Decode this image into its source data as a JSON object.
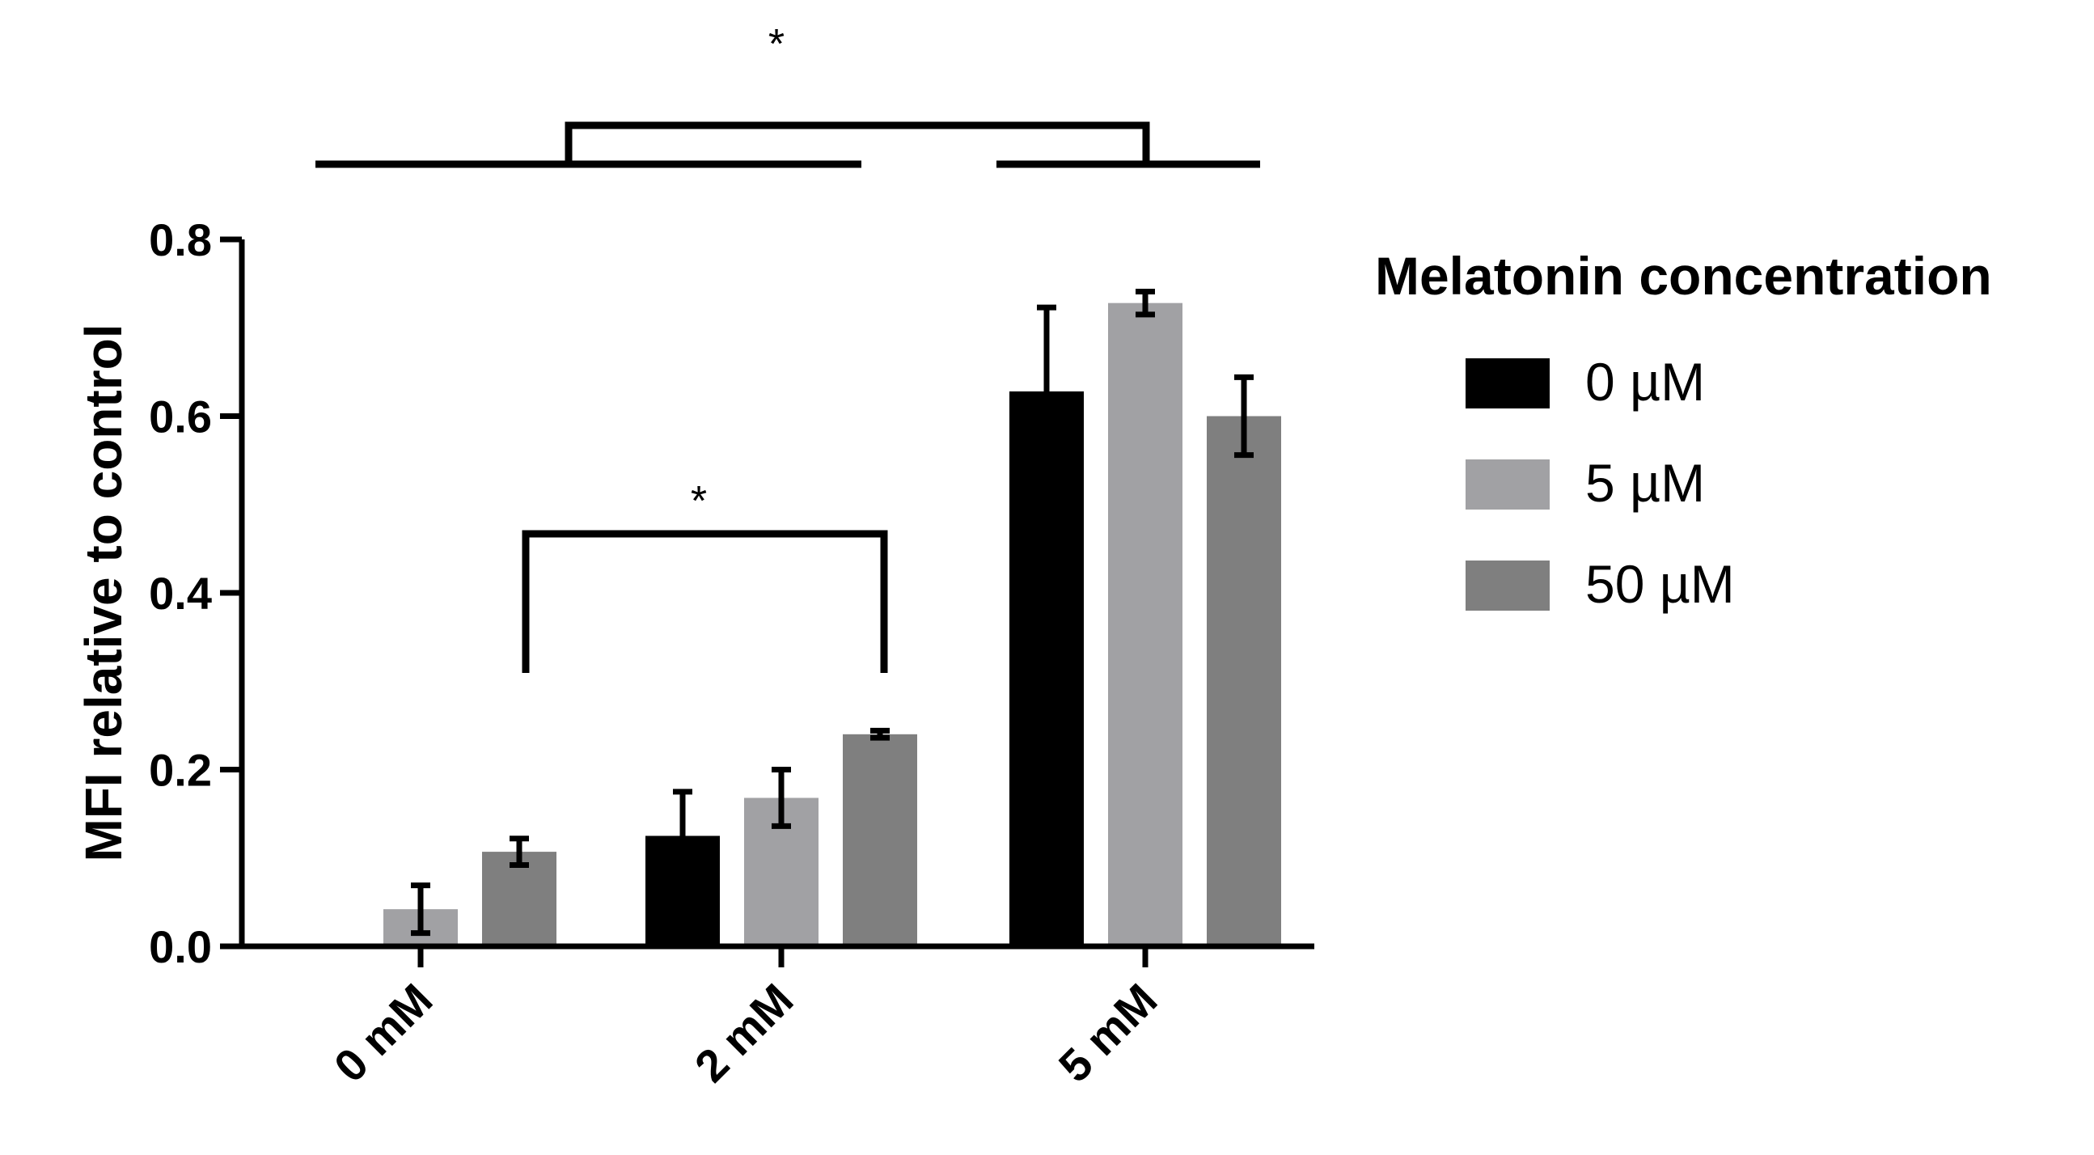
{
  "chart_data": {
    "type": "bar",
    "categories": [
      "0 mM",
      "2 mM",
      "5 mM"
    ],
    "series": [
      {
        "name": "0 µM",
        "color": "#000000",
        "values": [
          0.0,
          0.125,
          0.628
        ],
        "errors": [
          0.0,
          0.05,
          0.095
        ]
      },
      {
        "name": "5 µM",
        "color": "#a1a1a4",
        "values": [
          0.042,
          0.168,
          0.728
        ],
        "errors": [
          0.027,
          0.032,
          0.013
        ]
      },
      {
        "name": "50 µM",
        "color": "#7f7f7f",
        "values": [
          0.107,
          0.24,
          0.6
        ],
        "errors": [
          0.015,
          0.004,
          0.044
        ]
      }
    ],
    "ylabel": "MFI relative to control",
    "ylim": [
      0,
      0.8
    ],
    "yticks": [
      0.0,
      0.2,
      0.4,
      0.6,
      0.8
    ],
    "ytick_labels": [
      "0.0",
      "0.2",
      "0.4",
      "0.6",
      "0.8"
    ],
    "legend": {
      "title": "Melatonin concentration",
      "placement": "right"
    },
    "annotations": [
      {
        "text": "*",
        "between": [
          "0 mM",
          "2 mM"
        ],
        "series_span": "whole-groups"
      },
      {
        "text": "*",
        "between": [
          "0 mM / 50 µM",
          "2 mM / 50 µM"
        ]
      }
    ],
    "grid": false
  }
}
